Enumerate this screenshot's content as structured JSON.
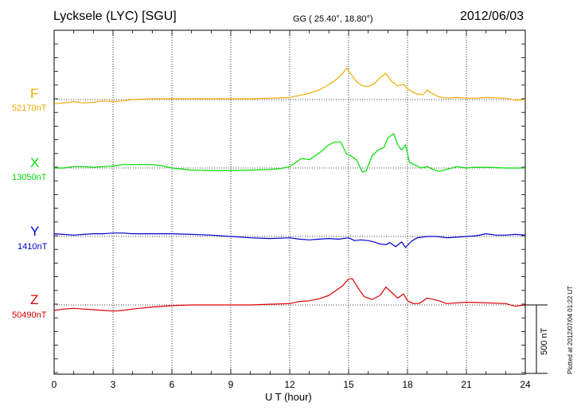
{
  "header": {
    "station": "Lycksele (LYC)  [SGU]",
    "coords": "GG ( 25.40°,  18.80°)",
    "date": "2012/06/03"
  },
  "side_note": "Plotted at 2012/07/04 01:22 UT",
  "scale": {
    "label": "500 nT",
    "value_nT": 500
  },
  "colors": {
    "F": "#f2a900",
    "X": "#00dd00",
    "Y": "#0000cc",
    "Z": "#dd0000",
    "axis": "#000000"
  },
  "chart_data": {
    "type": "line",
    "xlabel": "U T (hour)",
    "xlim": [
      0,
      24
    ],
    "xticks": [
      "0",
      "3",
      "6",
      "9",
      "12",
      "15",
      "18",
      "21",
      "24"
    ],
    "grid": true,
    "units": "nT",
    "series": [
      {
        "name": "F",
        "baseline_label": "52170nT",
        "baseline": 52170,
        "x": [
          0,
          0.5,
          1,
          1.5,
          2,
          2.5,
          3,
          3.5,
          4,
          5,
          6,
          7,
          8,
          9,
          10,
          11,
          12,
          12.5,
          13,
          13.5,
          14,
          14.4,
          14.7,
          14.9,
          15.1,
          15.4,
          15.7,
          16,
          16.3,
          16.6,
          16.9,
          17.2,
          17.5,
          17.8,
          18,
          18.2,
          18.5,
          18.8,
          19,
          19.3,
          19.6,
          20,
          20.5,
          21,
          21.5,
          22,
          23,
          23.5,
          24
        ],
        "y": [
          -30,
          -25,
          -15,
          -25,
          -20,
          -10,
          -15,
          -10,
          0,
          5,
          5,
          5,
          5,
          5,
          5,
          10,
          15,
          30,
          45,
          70,
          110,
          150,
          190,
          230,
          190,
          130,
          100,
          95,
          115,
          160,
          190,
          130,
          100,
          110,
          80,
          60,
          40,
          35,
          70,
          40,
          20,
          10,
          15,
          10,
          10,
          15,
          10,
          -5,
          0
        ]
      },
      {
        "name": "X",
        "baseline_label": "13050nT",
        "baseline": 13050,
        "x": [
          0,
          0.5,
          1,
          1.5,
          2,
          2.5,
          3,
          3.5,
          4,
          4.5,
          5,
          5.5,
          6,
          7,
          8,
          9,
          10,
          11,
          11.5,
          12,
          12.3,
          12.6,
          13,
          13.3,
          13.6,
          14,
          14.3,
          14.6,
          14.9,
          15.1,
          15.4,
          15.7,
          15.9,
          16.2,
          16.5,
          16.8,
          17,
          17.3,
          17.5,
          17.7,
          17.9,
          18.1,
          18.4,
          18.7,
          19,
          19.3,
          19.6,
          20,
          20.5,
          21,
          21.5,
          22,
          23,
          24
        ],
        "y": [
          0,
          0,
          10,
          10,
          5,
          10,
          15,
          25,
          25,
          25,
          25,
          15,
          0,
          -15,
          -20,
          -20,
          -15,
          -10,
          -5,
          10,
          40,
          70,
          60,
          90,
          120,
          170,
          190,
          190,
          100,
          90,
          60,
          -30,
          -20,
          90,
          130,
          150,
          220,
          250,
          170,
          130,
          170,
          40,
          20,
          0,
          10,
          -10,
          -25,
          -10,
          10,
          0,
          5,
          5,
          0,
          0
        ]
      },
      {
        "name": "Y",
        "baseline_label": "1410nT",
        "baseline": 1410,
        "x": [
          0,
          0.5,
          1,
          1.5,
          2,
          2.5,
          3,
          3.5,
          4,
          5,
          6,
          7,
          8,
          9,
          10,
          11,
          12,
          12.5,
          13,
          13.5,
          14,
          14.5,
          15,
          15.3,
          15.6,
          16,
          16.3,
          16.6,
          16.9,
          17.1,
          17.4,
          17.7,
          17.9,
          18.2,
          18.5,
          19,
          19.5,
          20,
          20.5,
          21,
          21.5,
          22,
          22.5,
          23,
          23.5,
          24
        ],
        "y": [
          20,
          15,
          10,
          15,
          20,
          20,
          25,
          25,
          20,
          20,
          20,
          15,
          10,
          0,
          -10,
          -15,
          -10,
          -20,
          -25,
          -20,
          -15,
          -20,
          -10,
          -30,
          -25,
          -30,
          -40,
          -55,
          -60,
          -45,
          -75,
          -40,
          -80,
          -35,
          -10,
          0,
          0,
          -10,
          -5,
          0,
          5,
          20,
          10,
          10,
          15,
          10
        ]
      },
      {
        "name": "Z",
        "baseline_label": "50490nT",
        "baseline": 50490,
        "x": [
          0,
          0.5,
          1,
          1.5,
          2,
          2.5,
          3,
          3.5,
          4,
          5,
          6,
          7,
          8,
          9,
          10,
          11,
          12,
          12.5,
          13,
          13.5,
          14,
          14.4,
          14.7,
          15,
          15.2,
          15.5,
          15.8,
          16.2,
          16.6,
          16.9,
          17.2,
          17.5,
          17.8,
          18,
          18.3,
          18.6,
          19,
          19.3,
          19.6,
          20,
          21,
          22,
          23,
          23.5,
          24
        ],
        "y": [
          -40,
          -30,
          -25,
          -30,
          -35,
          -40,
          -45,
          -40,
          -30,
          -15,
          -5,
          0,
          0,
          0,
          0,
          5,
          10,
          25,
          30,
          45,
          70,
          110,
          140,
          190,
          190,
          120,
          60,
          40,
          70,
          130,
          90,
          50,
          80,
          30,
          10,
          10,
          50,
          40,
          30,
          10,
          20,
          15,
          10,
          -10,
          0
        ]
      }
    ]
  }
}
